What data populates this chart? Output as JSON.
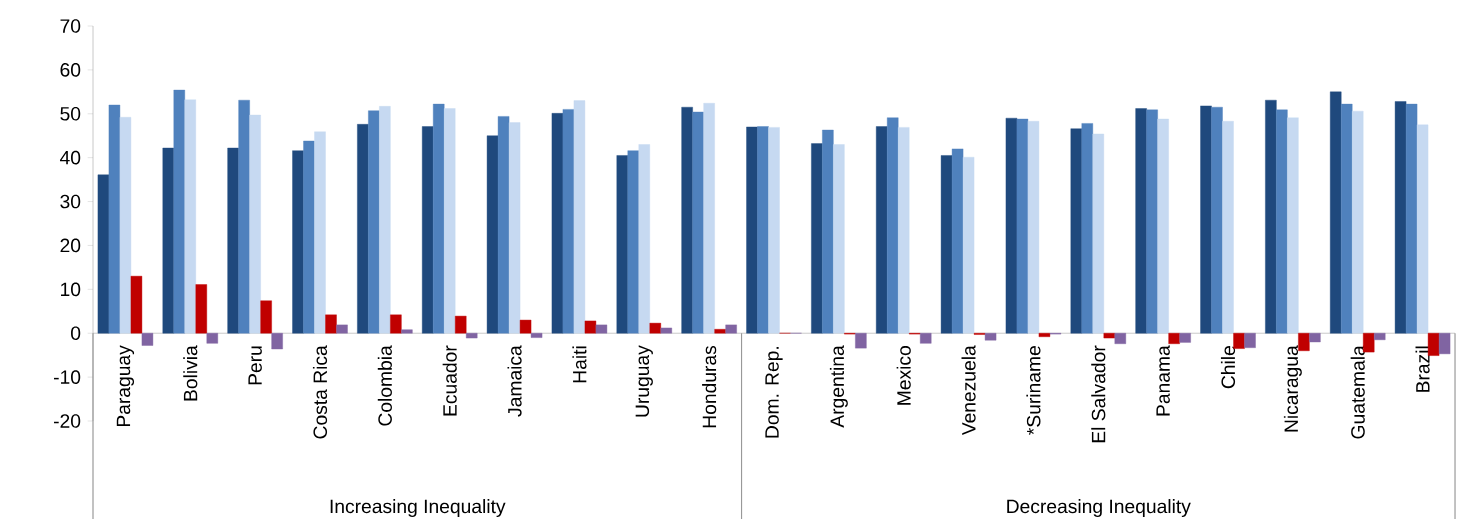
{
  "chart_data": {
    "type": "bar",
    "categories": [
      "Paraguay",
      "Bolivia",
      "Peru",
      "Costa Rica",
      "Colombia",
      "Ecuador",
      "Jamaica",
      "Haiti",
      "Uruguay",
      "Honduras",
      "Dom. Rep.",
      "Argentina",
      "Mexico",
      "Venezuela",
      "*Suriname",
      "El Salvador",
      "Panama",
      "Chile",
      "Nicaragua",
      "Guatemala",
      "Brazil"
    ],
    "series": [
      {
        "color": "#1f497d",
        "values": [
          36.1,
          42.2,
          42.2,
          41.6,
          47.6,
          47.1,
          45.0,
          50.1,
          40.5,
          51.5,
          47.0,
          43.2,
          47.1,
          40.5,
          49.0,
          46.6,
          51.2,
          51.8,
          53.1,
          55.0,
          52.8
        ]
      },
      {
        "color": "#4f81bd",
        "values": [
          52.0,
          55.4,
          53.1,
          43.8,
          50.7,
          52.2,
          49.4,
          51.0,
          41.6,
          50.4,
          47.1,
          46.3,
          49.1,
          42.0,
          48.8,
          47.8,
          50.9,
          51.5,
          50.9,
          52.2,
          52.2
        ]
      },
      {
        "color": "#c6d9f1",
        "values": [
          49.2,
          53.2,
          49.7,
          45.9,
          51.7,
          51.2,
          48.0,
          53.0,
          43.0,
          52.4,
          46.9,
          43.0,
          46.9,
          40.1,
          48.3,
          45.4,
          48.8,
          48.3,
          49.1,
          50.6,
          47.5
        ]
      },
      {
        "color": "#c00000",
        "values": [
          13.0,
          11.1,
          7.4,
          4.2,
          4.2,
          3.9,
          3.0,
          2.8,
          2.3,
          0.9,
          0,
          -0.2,
          -0.2,
          -0.3,
          -0.8,
          -1.1,
          -2.4,
          -3.5,
          -4.0,
          -4.3,
          -5.1
        ]
      },
      {
        "color": "#8064a2",
        "values": [
          -2.8,
          -2.3,
          -3.6,
          1.9,
          0.8,
          -1.1,
          -1.0,
          1.9,
          1.2,
          1.9,
          0,
          -3.4,
          -2.3,
          -1.6,
          -0.2,
          -2.4,
          -2.1,
          -3.3,
          -2.0,
          -1.5,
          -4.7
        ]
      }
    ],
    "ylim": [
      -20,
      70
    ],
    "yticks": [
      -20,
      -10,
      0,
      10,
      20,
      30,
      40,
      50,
      60,
      70
    ],
    "annotations": [
      "Increasing Inequality",
      "Decreasing Inequality"
    ]
  }
}
